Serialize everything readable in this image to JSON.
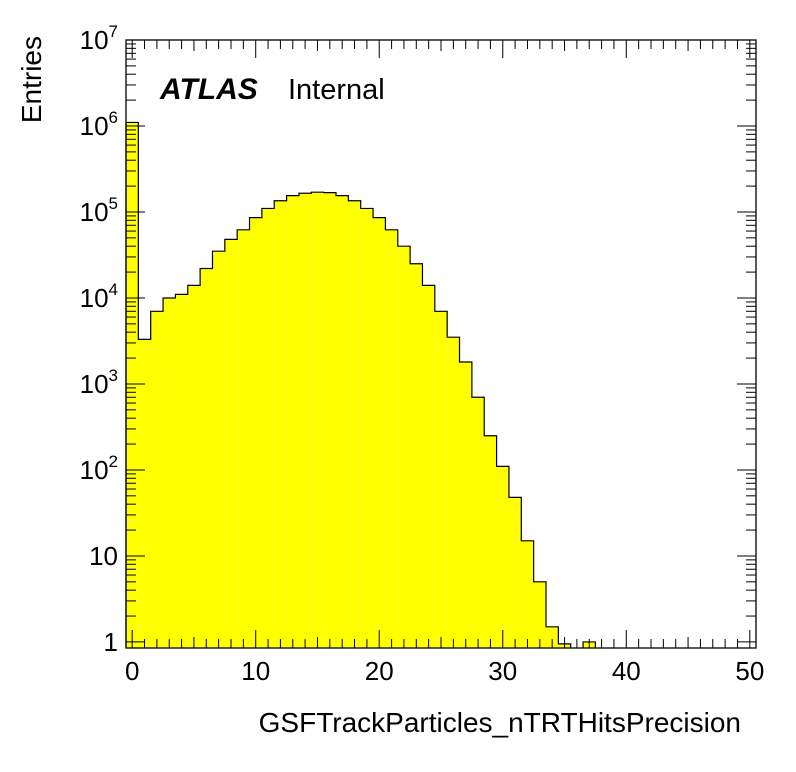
{
  "chart_data": {
    "type": "bar",
    "histogram": true,
    "y_scale": "log",
    "xlabel": "GSFTrackParticles_nTRTHitsPrecision",
    "ylabel": "Entries",
    "xlim": [
      -0.5,
      50.5
    ],
    "ylim": [
      0.85,
      10000000
    ],
    "x_ticks": [
      {
        "value": 0,
        "label": "0"
      },
      {
        "value": 10,
        "label": "10"
      },
      {
        "value": 20,
        "label": "20"
      },
      {
        "value": 30,
        "label": "30"
      },
      {
        "value": 40,
        "label": "40"
      },
      {
        "value": 50,
        "label": "50"
      }
    ],
    "y_ticks": [
      {
        "value": 1,
        "base": "1",
        "exp": ""
      },
      {
        "value": 10,
        "base": "10",
        "exp": ""
      },
      {
        "value": 100,
        "base": "10",
        "exp": "2"
      },
      {
        "value": 1000,
        "base": "10",
        "exp": "3"
      },
      {
        "value": 10000,
        "base": "10",
        "exp": "4"
      },
      {
        "value": 100000,
        "base": "10",
        "exp": "5"
      },
      {
        "value": 1000000,
        "base": "10",
        "exp": "6"
      },
      {
        "value": 10000000,
        "base": "10",
        "exp": "7"
      }
    ],
    "bin_width": 1,
    "bins_x": [
      0,
      1,
      2,
      3,
      4,
      5,
      6,
      7,
      8,
      9,
      10,
      11,
      12,
      13,
      14,
      15,
      16,
      17,
      18,
      19,
      20,
      21,
      22,
      23,
      24,
      25,
      26,
      27,
      28,
      29,
      30,
      31,
      32,
      33,
      34,
      35,
      36,
      37,
      38,
      39,
      40,
      41,
      42,
      43,
      44,
      45,
      46,
      47,
      48,
      49,
      50
    ],
    "values": [
      1100000,
      3300,
      7000,
      10000,
      11000,
      14000,
      22000,
      35000,
      48000,
      62000,
      86000,
      110000,
      135000,
      155000,
      165000,
      170000,
      168000,
      155000,
      135000,
      110000,
      86000,
      62000,
      40000,
      25000,
      14000,
      7000,
      3500,
      1800,
      700,
      250,
      110,
      48,
      15,
      5,
      1.5,
      0.95,
      0,
      1,
      0,
      0,
      0,
      0,
      0,
      0,
      0,
      0,
      0,
      0,
      0,
      0,
      0
    ],
    "fill_color": "#ffff00",
    "line_color": "#000000",
    "grid": false,
    "legend": "none"
  },
  "labels": {
    "atlas": "ATLAS",
    "status": "Internal"
  }
}
